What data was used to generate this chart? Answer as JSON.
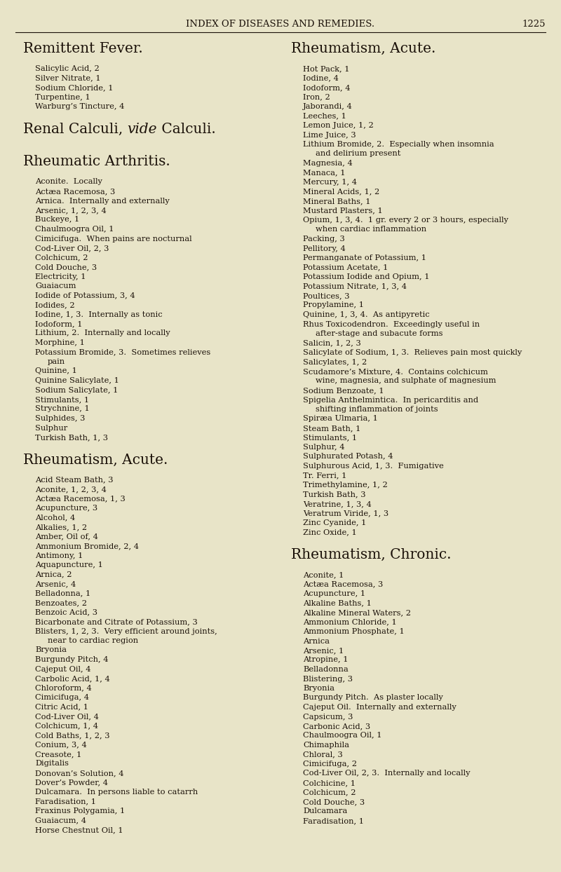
{
  "bg_color": "#e8e4c8",
  "text_color": "#1a1008",
  "page_header": "INDEX OF DISEASES AND REMEDIES.",
  "page_number": "1225",
  "left_column": [
    {
      "type": "section_title",
      "text": "Remittent Fever."
    },
    {
      "type": "entry",
      "text": "Salicylic Acid, 2"
    },
    {
      "type": "entry",
      "text": "Silver Nitrate, 1"
    },
    {
      "type": "entry",
      "text": "Sodium Chloride, 1"
    },
    {
      "type": "entry",
      "text": "Turpentine, 1"
    },
    {
      "type": "entry",
      "text": "Warburg’s Tincture, 4"
    },
    {
      "type": "section_title",
      "text": "Renal Calculi,  vide  Calculi."
    },
    {
      "type": "section_title",
      "text": "Rheumatic Arthritis."
    },
    {
      "type": "entry",
      "text": "Aconite.  Locally"
    },
    {
      "type": "entry",
      "text": "Actæa Racemosa, 3"
    },
    {
      "type": "entry",
      "text": "Arnica.  Internally and externally"
    },
    {
      "type": "entry",
      "text": "Arsenic, 1, 2, 3, 4"
    },
    {
      "type": "entry",
      "text": "Buckeye, 1"
    },
    {
      "type": "entry",
      "text": "Chaulmoogra Oil, 1"
    },
    {
      "type": "entry",
      "text": "Cimicifuga.  When pains are nocturnal"
    },
    {
      "type": "entry",
      "text": "Cod-Liver Oil, 2, 3"
    },
    {
      "type": "entry",
      "text": "Colchicum, 2"
    },
    {
      "type": "entry",
      "text": "Cold Douche, 3"
    },
    {
      "type": "entry",
      "text": "Electricity, 1"
    },
    {
      "type": "entry",
      "text": "Guaiacum"
    },
    {
      "type": "entry",
      "text": "Iodide of Potassium, 3, 4"
    },
    {
      "type": "entry",
      "text": "Iodides, 2"
    },
    {
      "type": "entry",
      "text": "Iodine, 1, 3.  Internally as tonic"
    },
    {
      "type": "entry",
      "text": "Iodoform, 1"
    },
    {
      "type": "entry",
      "text": "Lithium, 2.  Internally and locally"
    },
    {
      "type": "entry",
      "text": "Morphine, 1"
    },
    {
      "type": "entry",
      "text": "Potassium Bromide, 3.  Sometimes relieves"
    },
    {
      "type": "entry_cont",
      "text": "pain"
    },
    {
      "type": "entry",
      "text": "Quinine, 1"
    },
    {
      "type": "entry",
      "text": "Quinine Salicylate, 1"
    },
    {
      "type": "entry",
      "text": "Sodium Salicylate, 1"
    },
    {
      "type": "entry",
      "text": "Stimulants, 1"
    },
    {
      "type": "entry",
      "text": "Strychnine, 1"
    },
    {
      "type": "entry",
      "text": "Sulphides, 3"
    },
    {
      "type": "entry",
      "text": "Sulphur"
    },
    {
      "type": "entry",
      "text": "Turkish Bath, 1, 3"
    },
    {
      "type": "section_title",
      "text": "Rheumatism, Acute."
    },
    {
      "type": "entry",
      "text": "Acid Steam Bath, 3"
    },
    {
      "type": "entry",
      "text": "Aconite, 1, 2, 3, 4"
    },
    {
      "type": "entry",
      "text": "Actæa Racemosa, 1, 3"
    },
    {
      "type": "entry",
      "text": "Acupuncture, 3"
    },
    {
      "type": "entry",
      "text": "Alcohol, 4"
    },
    {
      "type": "entry",
      "text": "Alkalies, 1, 2"
    },
    {
      "type": "entry",
      "text": "Amber, Oil of, 4"
    },
    {
      "type": "entry",
      "text": "Ammonium Bromide, 2, 4"
    },
    {
      "type": "entry",
      "text": "Antimony, 1"
    },
    {
      "type": "entry",
      "text": "Aquapuncture, 1"
    },
    {
      "type": "entry",
      "text": "Arnica, 2"
    },
    {
      "type": "entry",
      "text": "Arsenic, 4"
    },
    {
      "type": "entry",
      "text": "Belladonna, 1"
    },
    {
      "type": "entry",
      "text": "Benzoates, 2"
    },
    {
      "type": "entry",
      "text": "Benzoic Acid, 3"
    },
    {
      "type": "entry",
      "text": "Bicarbonate and Citrate of Potassium, 3"
    },
    {
      "type": "entry",
      "text": "Blisters, 1, 2, 3.  Very efficient around joints,"
    },
    {
      "type": "entry_cont",
      "text": "near to cardiac region"
    },
    {
      "type": "entry",
      "text": "Bryonia"
    },
    {
      "type": "entry",
      "text": "Burgundy Pitch, 4"
    },
    {
      "type": "entry",
      "text": "Cajeput Oil, 4"
    },
    {
      "type": "entry",
      "text": "Carbolic Acid, 1, 4"
    },
    {
      "type": "entry",
      "text": "Chloroform, 4"
    },
    {
      "type": "entry",
      "text": "Cimicifuga, 4"
    },
    {
      "type": "entry",
      "text": "Citric Acid, 1"
    },
    {
      "type": "entry",
      "text": "Cod-Liver Oil, 4"
    },
    {
      "type": "entry",
      "text": "Colchicum, 1, 4"
    },
    {
      "type": "entry",
      "text": "Cold Baths, 1, 2, 3"
    },
    {
      "type": "entry",
      "text": "Conium, 3, 4"
    },
    {
      "type": "entry",
      "text": "Creasote, 1"
    },
    {
      "type": "entry",
      "text": "Digitalis"
    },
    {
      "type": "entry",
      "text": "Donovan’s Solution, 4"
    },
    {
      "type": "entry",
      "text": "Dover’s Powder, 4"
    },
    {
      "type": "entry",
      "text": "Dulcamara.  In persons liable to catarrh"
    },
    {
      "type": "entry",
      "text": "Faradisation, 1"
    },
    {
      "type": "entry",
      "text": "Fraxinus Polygamia, 1"
    },
    {
      "type": "entry",
      "text": "Guaiacum, 4"
    },
    {
      "type": "entry",
      "text": "Horse Chestnut Oil, 1"
    }
  ],
  "right_column": [
    {
      "type": "section_title",
      "text": "Rheumatism, Acute."
    },
    {
      "type": "entry",
      "text": "Hot Pack, 1"
    },
    {
      "type": "entry",
      "text": "Iodine, 4"
    },
    {
      "type": "entry",
      "text": "Iodoform, 4"
    },
    {
      "type": "entry",
      "text": "Iron, 2"
    },
    {
      "type": "entry",
      "text": "Jaborandi, 4"
    },
    {
      "type": "entry",
      "text": "Leeches, 1"
    },
    {
      "type": "entry",
      "text": "Lemon Juice, 1, 2"
    },
    {
      "type": "entry",
      "text": "Lime Juice, 3"
    },
    {
      "type": "entry",
      "text": "Lithium Bromide, 2.  Especially when insomnia"
    },
    {
      "type": "entry_cont",
      "text": "and delirium present"
    },
    {
      "type": "entry",
      "text": "Magnesia, 4"
    },
    {
      "type": "entry",
      "text": "Manaca, 1"
    },
    {
      "type": "entry",
      "text": "Mercury, 1, 4"
    },
    {
      "type": "entry",
      "text": "Mineral Acids, 1, 2"
    },
    {
      "type": "entry",
      "text": "Mineral Baths, 1"
    },
    {
      "type": "entry",
      "text": "Mustard Plasters, 1"
    },
    {
      "type": "entry",
      "text": "Opium, 1, 3, 4.  1 gr. every 2 or 3 hours, especially"
    },
    {
      "type": "entry_cont",
      "text": "when cardiac inflammation"
    },
    {
      "type": "entry",
      "text": "Packing, 3"
    },
    {
      "type": "entry",
      "text": "Pellitory, 4"
    },
    {
      "type": "entry",
      "text": "Permanganate of Potassium, 1"
    },
    {
      "type": "entry",
      "text": "Potassium Acetate, 1"
    },
    {
      "type": "entry",
      "text": "Potassium Iodide and Opium, 1"
    },
    {
      "type": "entry",
      "text": "Potassium Nitrate, 1, 3, 4"
    },
    {
      "type": "entry",
      "text": "Poultices, 3"
    },
    {
      "type": "entry",
      "text": "Propylamine, 1"
    },
    {
      "type": "entry",
      "text": "Quinine, 1, 3, 4.  As antipyretic"
    },
    {
      "type": "entry",
      "text": "Rhus Toxicodendron.  Exceedingly useful in"
    },
    {
      "type": "entry_cont",
      "text": "after-stage and subacute forms"
    },
    {
      "type": "entry",
      "text": "Salicin, 1, 2, 3"
    },
    {
      "type": "entry",
      "text": "Salicylate of Sodium, 1, 3.  Relieves pain most quickly"
    },
    {
      "type": "entry",
      "text": "Salicylates, 1, 2"
    },
    {
      "type": "entry",
      "text": "Scudamore’s Mixture, 4.  Contains colchicum"
    },
    {
      "type": "entry_cont",
      "text": "wine, magnesia, and sulphate of magnesium"
    },
    {
      "type": "entry",
      "text": "Sodium Benzoate, 1"
    },
    {
      "type": "entry",
      "text": "Spigelia Anthelmintica.  In pericarditis and"
    },
    {
      "type": "entry_cont",
      "text": "shifting inflammation of joints"
    },
    {
      "type": "entry",
      "text": "Spiræa Ulmaria, 1"
    },
    {
      "type": "entry",
      "text": "Steam Bath, 1"
    },
    {
      "type": "entry",
      "text": "Stimulants, 1"
    },
    {
      "type": "entry",
      "text": "Sulphur, 4"
    },
    {
      "type": "entry",
      "text": "Sulphurated Potash, 4"
    },
    {
      "type": "entry",
      "text": "Sulphurous Acid, 1, 3.  Fumigative"
    },
    {
      "type": "entry",
      "text": "Tr. Ferri, 1"
    },
    {
      "type": "entry",
      "text": "Trimethylamine, 1, 2"
    },
    {
      "type": "entry",
      "text": "Turkish Bath, 3"
    },
    {
      "type": "entry",
      "text": "Veratrine, 1, 3, 4"
    },
    {
      "type": "entry",
      "text": "Veratrum Viride, 1, 3"
    },
    {
      "type": "entry",
      "text": "Zinc Cyanide, 1"
    },
    {
      "type": "entry",
      "text": "Zinc Oxide, 1"
    },
    {
      "type": "section_title",
      "text": "Rheumatism, Chronic."
    },
    {
      "type": "entry",
      "text": "Aconite, 1"
    },
    {
      "type": "entry",
      "text": "Actæa Racemosa, 3"
    },
    {
      "type": "entry",
      "text": "Acupuncture, 1"
    },
    {
      "type": "entry",
      "text": "Alkaline Baths, 1"
    },
    {
      "type": "entry",
      "text": "Alkaline Mineral Waters, 2"
    },
    {
      "type": "entry",
      "text": "Ammonium Chloride, 1"
    },
    {
      "type": "entry",
      "text": "Ammonium Phosphate, 1"
    },
    {
      "type": "entry",
      "text": "Arnica"
    },
    {
      "type": "entry",
      "text": "Arsenic, 1"
    },
    {
      "type": "entry",
      "text": "Atropine, 1"
    },
    {
      "type": "entry",
      "text": "Belladonna"
    },
    {
      "type": "entry",
      "text": "Blistering, 3"
    },
    {
      "type": "entry",
      "text": "Bryonia"
    },
    {
      "type": "entry",
      "text": "Burgundy Pitch.  As plaster locally"
    },
    {
      "type": "entry",
      "text": "Cajeput Oil.  Internally and externally"
    },
    {
      "type": "entry",
      "text": "Capsicum, 3"
    },
    {
      "type": "entry",
      "text": "Carbonic Acid, 3"
    },
    {
      "type": "entry",
      "text": "Chaulmoogra Oil, 1"
    },
    {
      "type": "entry",
      "text": "Chimaphila"
    },
    {
      "type": "entry",
      "text": "Chloral, 3"
    },
    {
      "type": "entry",
      "text": "Cimicifuga, 2"
    },
    {
      "type": "entry",
      "text": "Cod-Liver Oil, 2, 3.  Internally and locally"
    },
    {
      "type": "entry",
      "text": "Colchicine, 1"
    },
    {
      "type": "entry",
      "text": "Colchicum, 2"
    },
    {
      "type": "entry",
      "text": "Cold Douche, 3"
    },
    {
      "type": "entry",
      "text": "Dulcamara"
    },
    {
      "type": "entry",
      "text": "Faradisation, 1"
    }
  ],
  "renal_calculi_normal": "Renal Calculi, ",
  "renal_calculi_italic": "vide",
  "renal_calculi_rest": " Calculi."
}
